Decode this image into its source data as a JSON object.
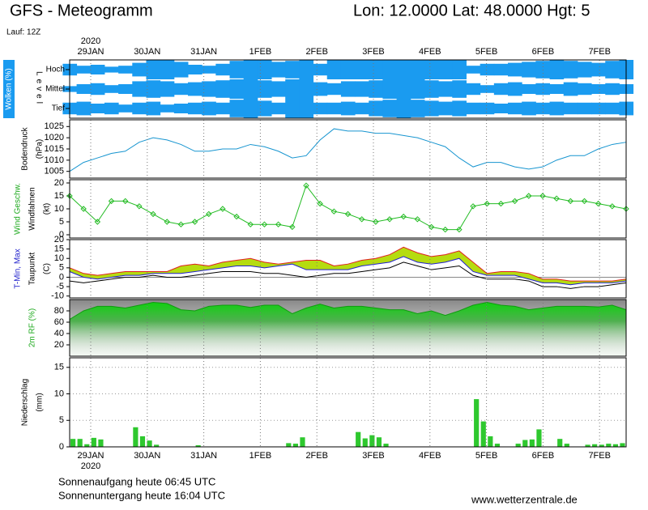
{
  "header": {
    "title": "GFS - Meteogramm",
    "location": "Lon: 12.0000 Lat: 48.0000 Hgt: 5",
    "run": "Lauf: 12Z"
  },
  "time_axis": {
    "year": "2020",
    "days": [
      "29JAN",
      "30JAN",
      "31JAN",
      "1FEB",
      "2FEB",
      "3FEB",
      "4FEB",
      "5FEB",
      "6FEB",
      "7FEB"
    ]
  },
  "footer": {
    "sunrise": "Sonnenaufgang heute 06:45 UTC",
    "sunset": "Sonnenuntergang heute 16:04 UTC",
    "site": "www.wetterzentrale.de"
  },
  "chart_data": [
    {
      "type": "cloud",
      "title": "Wolken (%)",
      "axis_label": "Level",
      "color": "#1a9bf0",
      "series": [
        {
          "name": "Hoch",
          "values": [
            60,
            40,
            50,
            30,
            40,
            70,
            100,
            100,
            80,
            50,
            40,
            60,
            90,
            100,
            100,
            80,
            90,
            100,
            60,
            100,
            100,
            100,
            100,
            100,
            100,
            100,
            100,
            100,
            100,
            40,
            60,
            60,
            70,
            80,
            90,
            100,
            90,
            80,
            70,
            90,
            100
          ]
        },
        {
          "name": "Mittel",
          "values": [
            30,
            50,
            60,
            40,
            50,
            80,
            90,
            80,
            60,
            70,
            80,
            90,
            100,
            100,
            90,
            80,
            100,
            100,
            70,
            60,
            80,
            80,
            90,
            100,
            100,
            100,
            90,
            80,
            90,
            60,
            40,
            60,
            70,
            50,
            60,
            50,
            70,
            60,
            50,
            60,
            50
          ]
        },
        {
          "name": "Tief",
          "values": [
            60,
            70,
            50,
            60,
            40,
            60,
            70,
            40,
            50,
            60,
            70,
            60,
            90,
            100,
            80,
            60,
            100,
            100,
            60,
            60,
            70,
            60,
            80,
            90,
            100,
            90,
            80,
            70,
            80,
            60,
            60,
            50,
            60,
            70,
            60,
            70,
            60,
            60,
            60,
            60,
            70
          ]
        }
      ]
    },
    {
      "type": "line",
      "label_lines": [
        "Bodendruck",
        "(hPa)"
      ],
      "label_colors": [
        "#000000",
        "#000000"
      ],
      "ylim": [
        1002,
        1028
      ],
      "yticks": [
        1005,
        1010,
        1015,
        1020,
        1025
      ],
      "series": [
        {
          "color": "#1795d0",
          "values": [
            1005,
            1009,
            1011,
            1013,
            1014,
            1018,
            1020,
            1019,
            1017,
            1014,
            1014,
            1015,
            1015,
            1017,
            1016,
            1014,
            1011,
            1012,
            1019,
            1024,
            1023,
            1023,
            1022,
            1022,
            1021,
            1020,
            1018,
            1016,
            1011,
            1007,
            1009,
            1009,
            1007,
            1006,
            1007,
            1010,
            1012,
            1012,
            1015,
            1017,
            1018
          ]
        }
      ]
    },
    {
      "type": "line",
      "markers": true,
      "label_lines": [
        "Wind Geschw.",
        "Windfahnen",
        "(kt)"
      ],
      "label_colors": [
        "#20aa20",
        "#000000",
        "#000000"
      ],
      "ylim": [
        -1.25,
        21.25
      ],
      "yticks": [
        0,
        5,
        10,
        15,
        20
      ],
      "series": [
        {
          "color": "#22bb22",
          "values": [
            15,
            10,
            5,
            13,
            13,
            11,
            8,
            5,
            4,
            5,
            8,
            10,
            7,
            4,
            4,
            4,
            3,
            19,
            12,
            9,
            8,
            6,
            5,
            6,
            7,
            6,
            3,
            2,
            2,
            11,
            12,
            12,
            13,
            15,
            15,
            14,
            13,
            13,
            12,
            11,
            10
          ]
        }
      ]
    },
    {
      "type": "range",
      "label_lines": [
        "T-Min, Max",
        "Taupunkt",
        "(C)"
      ],
      "label_colors": [
        "#2222cc",
        "#000000",
        "#000000"
      ],
      "ylim": [
        -11,
        20
      ],
      "yticks": [
        -10,
        -5,
        0,
        5,
        10,
        15,
        20
      ],
      "fill": "#b5dc10",
      "series": [
        {
          "color": "#e02020",
          "values": [
            5,
            2,
            1,
            2,
            3,
            3,
            3,
            3,
            6,
            7,
            6,
            8,
            9,
            10,
            8,
            7,
            8,
            9,
            9,
            6,
            7,
            9,
            10,
            12,
            16,
            13,
            11,
            12,
            14,
            8,
            2,
            3,
            3,
            2,
            -1,
            -1,
            -2,
            -2,
            -2,
            -2,
            -1
          ]
        },
        {
          "color": "#2020d0",
          "values": [
            3,
            0,
            -1,
            0,
            1,
            1,
            2,
            2,
            2,
            3,
            4,
            5,
            6,
            6,
            5,
            6,
            7,
            4,
            4,
            4,
            4,
            6,
            7,
            8,
            11,
            8,
            7,
            8,
            10,
            3,
            1,
            1,
            1,
            -1,
            -3,
            -3,
            -4,
            -3,
            -3,
            -3,
            -2
          ]
        },
        {
          "color": "#000000",
          "values": [
            -2,
            -3,
            -2,
            -1,
            0,
            0,
            1,
            0,
            0,
            1,
            2,
            3,
            3,
            3,
            2,
            2,
            1,
            0,
            1,
            2,
            2,
            3,
            4,
            5,
            8,
            6,
            4,
            5,
            6,
            1,
            -1,
            -1,
            -1,
            -2,
            -5,
            -5,
            -6,
            -5,
            -5,
            -4,
            -3
          ]
        }
      ]
    },
    {
      "type": "area",
      "label_lines": [
        "2m RF (%)"
      ],
      "label_colors": [
        "#20aa20"
      ],
      "ylim": [
        0,
        100
      ],
      "yticks": [
        20,
        40,
        60,
        80
      ],
      "series": [
        {
          "color": "#22cc22",
          "values": [
            65,
            80,
            88,
            88,
            85,
            90,
            95,
            93,
            82,
            80,
            88,
            90,
            90,
            86,
            90,
            90,
            75,
            85,
            92,
            85,
            88,
            88,
            85,
            82,
            82,
            75,
            80,
            72,
            80,
            90,
            95,
            90,
            88,
            82,
            85,
            88,
            88,
            88,
            87,
            90,
            82
          ]
        }
      ]
    },
    {
      "type": "bar",
      "label_lines": [
        "Niederschlag",
        "(mm)"
      ],
      "label_colors": [
        "#000000",
        "#000000"
      ],
      "ylim": [
        0,
        16.8
      ],
      "yticks": [
        0,
        5,
        10,
        15
      ],
      "grid": true,
      "series": [
        {
          "color": "#2ec82e",
          "values": [
            1.5,
            1.5,
            0.5,
            1.7,
            1.4,
            0,
            0,
            0,
            0,
            3.7,
            2.0,
            1.2,
            0.4,
            0,
            0,
            0,
            0,
            0,
            0.3,
            0,
            0,
            0,
            0,
            0,
            0,
            0,
            0,
            0,
            0,
            0,
            0,
            0.7,
            0.6,
            1.8,
            0,
            0,
            0,
            0,
            0,
            0,
            0,
            2.8,
            1.6,
            2.2,
            1.8,
            0.6,
            0,
            0,
            0,
            0,
            0,
            0,
            0,
            0,
            0,
            0,
            0,
            0,
            9.0,
            4.8,
            2.0,
            0.6,
            0,
            0,
            0.6,
            1.3,
            1.4,
            3.3,
            0,
            0,
            1.5,
            0.6,
            0,
            0,
            0.4,
            0.5,
            0.4,
            0.6,
            0.5,
            0.7
          ]
        }
      ]
    }
  ]
}
